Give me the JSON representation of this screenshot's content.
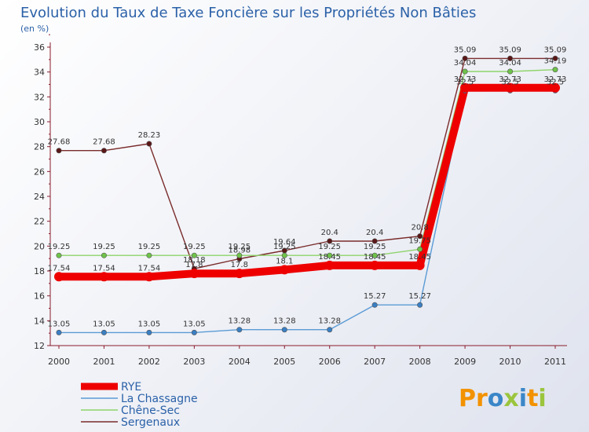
{
  "chart_data": {
    "type": "line",
    "title": "Evolution du Taux de Taxe Foncière sur les Propriétés Non Bâties",
    "subtitle": "(en %)",
    "xlabel": "",
    "ylabel": "",
    "ylim": [
      12,
      36
    ],
    "yticks": [
      12,
      14,
      16,
      18,
      20,
      22,
      24,
      26,
      28,
      30,
      32,
      34,
      36
    ],
    "grid": false,
    "legend_position": "bottom-left",
    "x": [
      "2000",
      "2001",
      "2002",
      "2003",
      "2004",
      "2005",
      "2006",
      "2007",
      "2008",
      "2009",
      "2010",
      "2011"
    ],
    "series": [
      {
        "name": "Sergenaux",
        "color": "#7a2c2c",
        "marker": "#5a1717",
        "values": [
          27.68,
          27.68,
          28.23,
          18.18,
          18.98,
          19.64,
          20.4,
          20.4,
          20.8,
          35.09,
          35.09,
          35.09
        ],
        "labels": [
          "27.68",
          "27.68",
          "28.23",
          "18.18",
          "18.98",
          "19.64",
          "20.4",
          "20.4",
          "20.8",
          "35.09",
          "35.09",
          "35.09"
        ]
      },
      {
        "name": "Chêne-Sec",
        "color": "#8ed46a",
        "marker": "#6fc24a",
        "values": [
          19.25,
          19.25,
          19.25,
          19.25,
          19.25,
          19.25,
          19.25,
          19.25,
          19.75,
          34.04,
          34.04,
          34.19
        ],
        "labels": [
          "19.25",
          "19.25",
          "19.25",
          "19.25",
          "19.25",
          "19.25",
          "19.25",
          "19.25",
          "19.75",
          "34.04",
          "34.04",
          "34.19"
        ]
      },
      {
        "name": "La Chassagne",
        "color": "#5b9bd5",
        "marker": "#3a7fc4",
        "values": [
          13.05,
          13.05,
          13.05,
          13.05,
          13.28,
          13.28,
          13.28,
          15.27,
          15.27,
          32.5,
          32.5,
          32.5
        ],
        "labels": [
          "13.05",
          "13.05",
          "13.05",
          "13.05",
          "13.28",
          "13.28",
          "13.28",
          "15.27",
          "15.27",
          "32.5",
          "32.5",
          "32.5"
        ]
      },
      {
        "name": "RYE",
        "color": "#ee0000",
        "marker": "#ee0000",
        "values": [
          17.54,
          17.54,
          17.54,
          17.8,
          17.8,
          18.1,
          18.45,
          18.45,
          18.45,
          32.73,
          32.73,
          32.73
        ],
        "labels": [
          "17.54",
          "17.54",
          "17.54",
          "17.8",
          "17.8",
          "18.1",
          "18.45",
          "18.45",
          "18.45",
          "32.73",
          "32.73",
          "32.73"
        ]
      }
    ],
    "legend": [
      "RYE",
      "La Chassagne",
      "Chêne-Sec",
      "Sergenaux"
    ]
  },
  "logo": {
    "text": "Proxiti",
    "letters": [
      "P",
      "r",
      "o",
      "x",
      "i",
      "t",
      "i"
    ],
    "colors": [
      "#f39200",
      "#f39200",
      "#3a86c8",
      "#9bc53d",
      "#3a86c8",
      "#f39200",
      "#9bc53d"
    ]
  }
}
